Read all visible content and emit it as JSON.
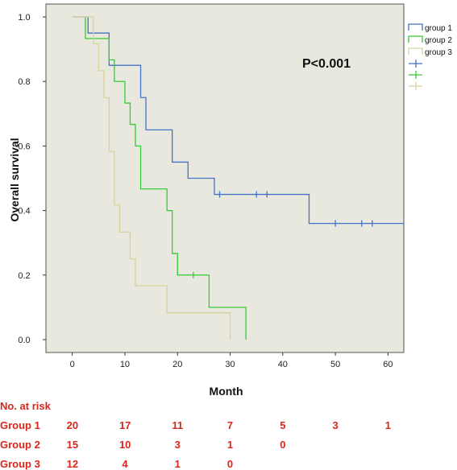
{
  "chart_data": {
    "type": "line",
    "subtype": "kaplan-meier step",
    "xlabel": "Month",
    "ylabel": "Overall survival",
    "xlim": [
      -5,
      63
    ],
    "ylim": [
      -0.04,
      1.04
    ],
    "x_ticks": [
      "0",
      "10",
      "20",
      "30",
      "40",
      "50",
      "60"
    ],
    "y_ticks": [
      "0.0",
      "0.2",
      "0.4",
      "0.6",
      "0.8",
      "1.0"
    ],
    "annotation": "P<0.001",
    "grid": false,
    "legend_position": "top-right",
    "series": [
      {
        "name": "group 1",
        "color": "#4472c4",
        "steps": [
          [
            0,
            1.0
          ],
          [
            3,
            0.95
          ],
          [
            7,
            0.85
          ],
          [
            13,
            0.75
          ],
          [
            14,
            0.65
          ],
          [
            19,
            0.55
          ],
          [
            22,
            0.5
          ],
          [
            27,
            0.45
          ],
          [
            45,
            0.36
          ],
          [
            63,
            0.36
          ]
        ],
        "censored": [
          [
            28,
            0.45
          ],
          [
            35,
            0.45
          ],
          [
            37,
            0.45
          ],
          [
            50,
            0.36
          ],
          [
            55,
            0.36
          ],
          [
            57,
            0.36
          ]
        ]
      },
      {
        "name": "group 2",
        "color": "#33cc33",
        "steps": [
          [
            2,
            1.0
          ],
          [
            2.5,
            0.933
          ],
          [
            7,
            0.867
          ],
          [
            8,
            0.8
          ],
          [
            10,
            0.733
          ],
          [
            11,
            0.667
          ],
          [
            12,
            0.6
          ],
          [
            13,
            0.467
          ],
          [
            18,
            0.4
          ],
          [
            19,
            0.267
          ],
          [
            20,
            0.2
          ],
          [
            26,
            0.1
          ],
          [
            33,
            0.0
          ]
        ],
        "censored": [
          [
            23,
            0.2
          ]
        ]
      },
      {
        "name": "group 3",
        "color": "#d8d29e",
        "steps": [
          [
            0,
            1.0
          ],
          [
            4,
            0.917
          ],
          [
            5,
            0.833
          ],
          [
            6,
            0.75
          ],
          [
            7,
            0.583
          ],
          [
            8,
            0.417
          ],
          [
            9,
            0.333
          ],
          [
            11,
            0.25
          ],
          [
            12,
            0.167
          ],
          [
            18,
            0.083
          ],
          [
            30,
            0.0
          ]
        ],
        "censored": []
      }
    ],
    "risk_table": {
      "title": "No. at risk",
      "rows": [
        {
          "label": "Group 1",
          "values": [
            "20",
            "17",
            "11",
            "7",
            "5",
            "3",
            "1"
          ]
        },
        {
          "label": "Group 2",
          "values": [
            "15",
            "10",
            "3",
            "1",
            "0"
          ]
        },
        {
          "label": "Group 3",
          "values": [
            "12",
            "4",
            "1",
            "0"
          ]
        }
      ]
    }
  }
}
